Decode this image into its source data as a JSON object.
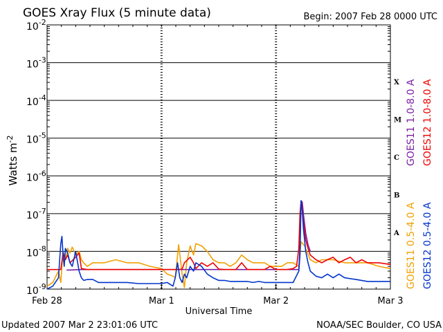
{
  "chart_data": {
    "type": "line",
    "title": "GOES Xray Flux (5 minute data)",
    "begin_label": "Begin:  2007 Feb 28 0000 UTC",
    "xlabel": "Universal Time",
    "ylabel": "Watts m",
    "ylabel_superscript": "-2",
    "y_scale": "log",
    "ylim": [
      1e-09,
      0.01
    ],
    "xlim_days": [
      0,
      3
    ],
    "x_ticks": [
      {
        "day": 0,
        "label": "Feb 28"
      },
      {
        "day": 1,
        "label": "Mar 1"
      },
      {
        "day": 2,
        "label": "Mar 2"
      },
      {
        "day": 3,
        "label": "Mar 3"
      }
    ],
    "y_ticks": [
      {
        "exp": -2,
        "label": "10",
        "sup": "-2"
      },
      {
        "exp": -3,
        "label": "10",
        "sup": "-3"
      },
      {
        "exp": -4,
        "label": "10",
        "sup": "-4"
      },
      {
        "exp": -5,
        "label": "10",
        "sup": "-5"
      },
      {
        "exp": -6,
        "label": "10",
        "sup": "-6"
      },
      {
        "exp": -7,
        "label": "10",
        "sup": "-7"
      },
      {
        "exp": -8,
        "label": "10",
        "sup": "-8"
      },
      {
        "exp": -9,
        "label": "10",
        "sup": "-9"
      }
    ],
    "flare_classes": [
      {
        "label": "X",
        "exp": -3.5
      },
      {
        "label": "M",
        "exp": -4.5
      },
      {
        "label": "C",
        "exp": -5.5
      },
      {
        "label": "B",
        "exp": -6.5
      },
      {
        "label": "A",
        "exp": -7.5
      }
    ],
    "grid": true,
    "series": [
      {
        "name": "GOES11 1.0-8.0 A",
        "color": "#7a1fa2",
        "x": [
          0.17,
          0.2,
          0.3,
          0.4,
          0.5,
          0.6,
          0.7,
          0.8,
          0.9,
          1.0,
          1.1,
          1.2,
          1.3,
          1.4,
          1.5,
          1.6,
          1.7,
          1.8,
          1.9,
          2.0,
          2.1,
          2.2,
          2.21,
          2.215,
          2.22,
          2.23,
          2.24,
          2.26,
          2.28,
          2.3
        ],
        "y": [
          3.2e-09,
          3.2e-09,
          3.3e-09,
          3.3e-09,
          3.3e-09,
          3.3e-09,
          3.3e-09,
          3.3e-09,
          3.3e-09,
          3.3e-09,
          3.3e-09,
          3.3e-09,
          3.3e-09,
          3.3e-09,
          3.3e-09,
          3.3e-09,
          3.3e-09,
          3.3e-09,
          3.3e-09,
          3.3e-09,
          3.3e-09,
          3.3e-09,
          1.5e-08,
          8e-08,
          2.2e-07,
          2e-07,
          1e-07,
          3e-08,
          1.5e-08,
          1e-08
        ]
      },
      {
        "name": "GOES12 1.0-8.0 A",
        "color": "#ee0000",
        "x": [
          0.0,
          0.1,
          0.12,
          0.14,
          0.16,
          0.18,
          0.2,
          0.25,
          0.28,
          0.3,
          0.35,
          0.4,
          0.5,
          0.6,
          0.7,
          0.8,
          0.9,
          1.0,
          1.1,
          1.15,
          1.18,
          1.2,
          1.25,
          1.28,
          1.3,
          1.35,
          1.4,
          1.45,
          1.5,
          1.55,
          1.6,
          1.65,
          1.7,
          1.75,
          1.8,
          1.85,
          1.9,
          1.95,
          2.0,
          2.05,
          2.1,
          2.15,
          2.18,
          2.2,
          2.21,
          2.22,
          2.23,
          2.24,
          2.26,
          2.28,
          2.3,
          2.35,
          2.4,
          2.45,
          2.5,
          2.55,
          2.6,
          2.65,
          2.7,
          2.75,
          2.8,
          2.85,
          2.9,
          3.0
        ],
        "y": [
          3.3e-09,
          3.3e-09,
          3.3e-09,
          9e-09,
          6e-09,
          8e-09,
          5e-09,
          7e-09,
          9e-09,
          3.5e-09,
          3.3e-09,
          3.3e-09,
          3.3e-09,
          3.3e-09,
          3.3e-09,
          3.3e-09,
          3.3e-09,
          3.3e-09,
          3.3e-09,
          3.3e-09,
          3.4e-09,
          5e-09,
          7e-09,
          5e-09,
          3.5e-09,
          5e-09,
          4e-09,
          5e-09,
          3.4e-09,
          3.3e-09,
          3.3e-09,
          3.3e-09,
          5e-09,
          3.3e-09,
          3.3e-09,
          3.3e-09,
          3.3e-09,
          4e-09,
          3.3e-09,
          3.3e-09,
          3.3e-09,
          3.5e-09,
          4e-09,
          1.2e-08,
          1e-07,
          2.2e-07,
          1.5e-07,
          6e-08,
          2e-08,
          1.2e-08,
          8e-09,
          6e-09,
          5e-09,
          6e-09,
          7e-09,
          5e-09,
          6e-09,
          7e-09,
          5e-09,
          6e-09,
          5e-09,
          5e-09,
          5e-09,
          4.5e-09
        ]
      },
      {
        "name": "GOES11 0.5-4.0 A",
        "color": "#f0a000",
        "x": [
          0.0,
          0.05,
          0.1,
          0.12,
          0.14,
          0.16,
          0.18,
          0.2,
          0.22,
          0.25,
          0.28,
          0.3,
          0.32,
          0.35,
          0.4,
          0.5,
          0.6,
          0.7,
          0.8,
          0.9,
          1.0,
          1.05,
          1.1,
          1.12,
          1.15,
          1.18,
          1.2,
          1.22,
          1.25,
          1.28,
          1.3,
          1.35,
          1.4,
          1.45,
          1.5,
          1.55,
          1.6,
          1.65,
          1.7,
          1.75,
          1.8,
          1.85,
          1.9,
          1.95,
          2.0,
          2.05,
          2.1,
          2.15,
          2.2,
          2.22,
          2.25,
          2.3,
          2.35,
          2.4,
          2.5,
          2.6,
          2.7,
          2.8,
          2.9,
          3.0
        ],
        "y": [
          1.2e-09,
          1.5e-09,
          3e-09,
          1.5e-09,
          1e-08,
          6e-09,
          1.2e-08,
          9e-09,
          1.3e-08,
          8e-09,
          1e-08,
          6e-09,
          5e-09,
          4e-09,
          5e-09,
          5e-09,
          6e-09,
          5e-09,
          5e-09,
          4e-09,
          3.5e-09,
          2.5e-09,
          2.2e-09,
          2e-09,
          1.5e-08,
          2.5e-09,
          1.1e-09,
          5e-09,
          1.4e-08,
          8e-09,
          1.6e-08,
          1.4e-08,
          1e-08,
          6e-09,
          5e-09,
          5e-09,
          4e-09,
          5e-09,
          8e-09,
          6e-09,
          5e-09,
          5e-09,
          5e-09,
          4e-09,
          4e-09,
          4e-09,
          5e-09,
          5e-09,
          4e-09,
          1.8e-08,
          1.4e-08,
          6e-09,
          5e-09,
          6e-09,
          6e-09,
          5e-09,
          5e-09,
          5e-09,
          4e-09,
          3.5e-09
        ]
      },
      {
        "name": "GOES12 0.5-4.0 A",
        "color": "#0033cc",
        "x": [
          0.0,
          0.05,
          0.1,
          0.11,
          0.12,
          0.13,
          0.14,
          0.15,
          0.16,
          0.18,
          0.2,
          0.22,
          0.25,
          0.28,
          0.3,
          0.32,
          0.35,
          0.4,
          0.45,
          0.5,
          0.55,
          0.6,
          0.7,
          0.8,
          0.9,
          1.0,
          1.05,
          1.1,
          1.12,
          1.14,
          1.16,
          1.18,
          1.2,
          1.22,
          1.25,
          1.28,
          1.3,
          1.35,
          1.4,
          1.45,
          1.5,
          1.55,
          1.6,
          1.65,
          1.7,
          1.75,
          1.8,
          1.85,
          1.9,
          1.95,
          2.0,
          2.05,
          2.1,
          2.15,
          2.2,
          2.21,
          2.22,
          2.23,
          2.24,
          2.26,
          2.28,
          2.3,
          2.35,
          2.4,
          2.45,
          2.5,
          2.55,
          2.6,
          2.7,
          2.8,
          2.9,
          3.0
        ],
        "y": [
          1e-09,
          1.2e-09,
          2e-09,
          6e-09,
          1.6e-08,
          2.5e-08,
          8e-09,
          4e-09,
          1.2e-08,
          9e-09,
          5e-09,
          4e-09,
          1e-08,
          3e-09,
          2e-09,
          1.7e-09,
          1.8e-09,
          1.8e-09,
          1.5e-09,
          1.5e-09,
          1.5e-09,
          1.5e-09,
          1.5e-09,
          1.4e-09,
          1.4e-09,
          1.4e-09,
          1.5e-09,
          1.2e-09,
          2e-09,
          5e-09,
          2e-09,
          1.5e-09,
          2.5e-09,
          2e-09,
          4e-09,
          3e-09,
          5e-09,
          4e-09,
          2.5e-09,
          2e-09,
          1.7e-09,
          1.7e-09,
          1.6e-09,
          1.6e-09,
          1.6e-09,
          1.6e-09,
          1.5e-09,
          1.6e-09,
          1.5e-09,
          1.5e-09,
          1.5e-09,
          1.5e-09,
          1.5e-09,
          1.5e-09,
          3e-09,
          8e-09,
          2.2e-07,
          1.2e-07,
          4e-08,
          1e-08,
          5e-09,
          3e-09,
          2.2e-09,
          2e-09,
          2.5e-09,
          2e-09,
          2.5e-09,
          2e-09,
          1.8e-09,
          1.6e-09,
          1.6e-09,
          1.6e-09
        ]
      }
    ],
    "footer_left": "Updated 2007 Mar  2 23:01:06 UTC",
    "footer_right": "NOAA/SEC Boulder, CO USA"
  }
}
